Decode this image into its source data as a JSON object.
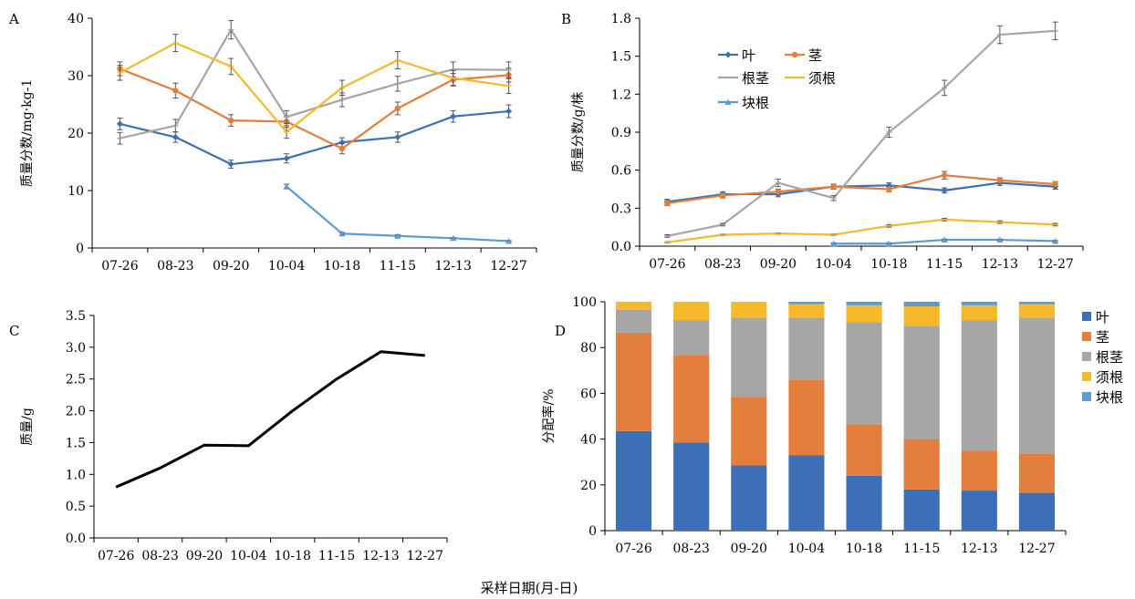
{
  "figure": {
    "xlabel": "采样日期(月-日)"
  },
  "series_colors": {
    "叶": "#3C6FB6",
    "茎": "#E37E3C",
    "根茎": "#A6A6A6",
    "须根": "#F7B829",
    "块根": "#5B9BD5"
  },
  "chart_data": [
    {
      "panel": "A",
      "type": "line",
      "categories": [
        "07-26",
        "08-23",
        "09-20",
        "10-04",
        "10-18",
        "11-15",
        "12-13",
        "12-27"
      ],
      "ylabel": "质量分数/mg·kg-1",
      "ylim": [
        0,
        40
      ],
      "yticks": [
        0,
        10,
        20,
        30,
        40
      ],
      "series": [
        {
          "name": "叶",
          "values": [
            21.6,
            19.3,
            14.6,
            15.6,
            18.4,
            19.3,
            22.9,
            23.8
          ],
          "errors": [
            1.0,
            0.9,
            0.7,
            0.8,
            0.8,
            0.9,
            1.0,
            1.1
          ]
        },
        {
          "name": "茎",
          "values": [
            31.2,
            27.4,
            22.2,
            22.0,
            17.3,
            24.3,
            29.3,
            30.1
          ],
          "errors": [
            1.2,
            1.3,
            1.0,
            1.0,
            0.9,
            1.1,
            1.1,
            1.2
          ]
        },
        {
          "name": "根茎",
          "values": [
            19.1,
            21.3,
            38.0,
            22.8,
            25.8,
            28.6,
            31.1,
            31.0
          ],
          "errors": [
            1.0,
            1.1,
            1.6,
            1.1,
            1.2,
            1.3,
            1.3,
            1.4
          ]
        },
        {
          "name": "须根",
          "values": [
            30.5,
            35.7,
            31.6,
            20.2,
            27.9,
            32.7,
            29.6,
            28.2
          ],
          "errors": [
            1.3,
            1.5,
            1.4,
            1.1,
            1.3,
            1.5,
            1.3,
            1.3
          ]
        },
        {
          "name": "块根",
          "values": [
            null,
            null,
            null,
            10.7,
            2.5,
            2.1,
            1.7,
            1.2
          ],
          "errors": [
            0,
            0,
            0,
            0.4,
            0.2,
            0.2,
            0.1,
            0.1
          ]
        }
      ]
    },
    {
      "panel": "B",
      "type": "line",
      "categories": [
        "07-26",
        "08-23",
        "09-20",
        "10-04",
        "10-18",
        "11-15",
        "12-13",
        "12-27"
      ],
      "ylabel": "质量分数/g/株",
      "ylim": [
        0,
        1.8
      ],
      "yticks": [
        "0.0",
        "0.3",
        "0.6",
        "0.9",
        "1.2",
        "1.5",
        "1.8"
      ],
      "series": [
        {
          "name": "叶",
          "values": [
            0.35,
            0.41,
            0.41,
            0.47,
            0.48,
            0.44,
            0.5,
            0.47
          ],
          "errors": [
            0.02,
            0.02,
            0.02,
            0.02,
            0.02,
            0.02,
            0.02,
            0.02
          ]
        },
        {
          "name": "茎",
          "values": [
            0.34,
            0.4,
            0.43,
            0.47,
            0.45,
            0.56,
            0.52,
            0.49
          ],
          "errors": [
            0.02,
            0.02,
            0.02,
            0.02,
            0.02,
            0.03,
            0.02,
            0.02
          ]
        },
        {
          "name": "根茎",
          "values": [
            0.08,
            0.17,
            0.5,
            0.38,
            0.9,
            1.25,
            1.67,
            1.7
          ],
          "errors": [
            0.01,
            0.01,
            0.03,
            0.02,
            0.04,
            0.06,
            0.07,
            0.07
          ]
        },
        {
          "name": "须根",
          "values": [
            0.03,
            0.09,
            0.1,
            0.09,
            0.16,
            0.21,
            0.19,
            0.17
          ],
          "errors": [
            0.005,
            0.005,
            0.005,
            0.005,
            0.01,
            0.01,
            0.01,
            0.01
          ]
        },
        {
          "name": "块根",
          "values": [
            null,
            null,
            null,
            0.02,
            0.02,
            0.05,
            0.05,
            0.04
          ],
          "errors": [
            0,
            0,
            0,
            0.005,
            0.005,
            0.005,
            0.005,
            0.005
          ]
        }
      ],
      "legend": [
        "叶",
        "茎",
        "根茎",
        "须根",
        "块根"
      ]
    },
    {
      "panel": "C",
      "type": "line",
      "categories": [
        "07-26",
        "08-23",
        "09-20",
        "10-04",
        "10-18",
        "11-15",
        "12-13",
        "12-27"
      ],
      "ylabel": "质量/g",
      "ylim": [
        0,
        3.5
      ],
      "yticks": [
        "0.0",
        "0.5",
        "1.0",
        "1.5",
        "2.0",
        "2.5",
        "3.0",
        "3.5"
      ],
      "series": [
        {
          "values": [
            0.8,
            1.1,
            1.46,
            1.45,
            2.0,
            2.5,
            2.93,
            2.87
          ]
        }
      ]
    },
    {
      "panel": "D",
      "type": "bar",
      "stacked": true,
      "categories": [
        "07-26",
        "08-23",
        "09-20",
        "10-04",
        "10-18",
        "11-15",
        "12-13",
        "12-27"
      ],
      "ylabel": "分配率/%",
      "ylim": [
        0,
        100
      ],
      "yticks": [
        0,
        20,
        40,
        60,
        80,
        100
      ],
      "series": [
        {
          "name": "叶",
          "values": [
            43.5,
            38.5,
            28.5,
            33.0,
            24.0,
            18.0,
            17.5,
            16.5
          ]
        },
        {
          "name": "茎",
          "values": [
            43.0,
            38.0,
            30.0,
            33.0,
            22.5,
            22.0,
            17.5,
            17.0
          ]
        },
        {
          "name": "根茎",
          "values": [
            10.0,
            15.5,
            34.5,
            27.0,
            44.5,
            49.5,
            57.0,
            59.5
          ]
        },
        {
          "name": "须根",
          "values": [
            3.5,
            8.0,
            7.0,
            6.0,
            7.5,
            8.5,
            6.5,
            6.0
          ]
        },
        {
          "name": "块根",
          "values": [
            0,
            0,
            0,
            1.0,
            1.5,
            2.0,
            1.5,
            1.0
          ]
        }
      ],
      "legend": [
        "叶",
        "茎",
        "根茎",
        "须根",
        "块根"
      ]
    }
  ]
}
